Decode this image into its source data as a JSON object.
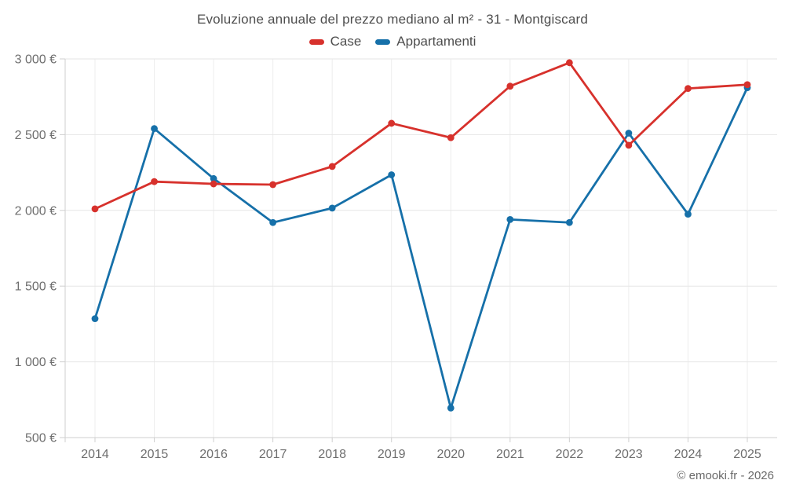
{
  "chart": {
    "title": "Evoluzione annuale del prezzo mediano al m² - 31 - Montgiscard",
    "copyright": "© emooki.fr - 2026"
  },
  "chart_data": {
    "type": "line",
    "title": "Evoluzione annuale del prezzo mediano al m² - 31 - Montgiscard",
    "categories": [
      "2014",
      "2015",
      "2016",
      "2017",
      "2018",
      "2019",
      "2020",
      "2021",
      "2022",
      "2023",
      "2024",
      "2025"
    ],
    "series": [
      {
        "name": "Case",
        "color": "#d7312c",
        "values": [
          2010,
          2190,
          2175,
          2170,
          2290,
          2575,
          2480,
          2820,
          2975,
          2430,
          2805,
          2830
        ]
      },
      {
        "name": "Appartamenti",
        "color": "#1670a9",
        "values": [
          1285,
          2540,
          2210,
          1920,
          2015,
          2235,
          695,
          1940,
          1920,
          2510,
          1975,
          2810
        ]
      }
    ],
    "xlabel": "",
    "ylabel": "",
    "ylim": [
      500,
      3000
    ],
    "ytick_step": 500,
    "ytick_labels": [
      "500 €",
      "1 000 €",
      "1 500 €",
      "2 000 €",
      "2 500 €",
      "3 000 €"
    ],
    "grid": true,
    "legend_position": "top",
    "marker": "circle"
  }
}
